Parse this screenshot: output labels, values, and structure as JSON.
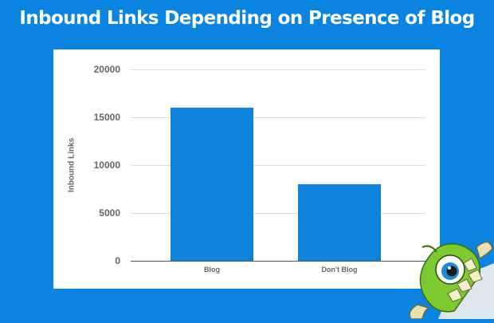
{
  "title": "Inbound Links Depending on Presence of Blog",
  "colors": {
    "background": "#0a84e0",
    "panel": "#ffffff",
    "bar": "#0f82de",
    "gridline": "#dcdcdc",
    "axis_text": "#666666"
  },
  "chart_data": {
    "type": "bar",
    "title": "Inbound Links Depending on Presence of Blog",
    "categories": [
      "Blog",
      "Don't Blog"
    ],
    "values": [
      16000,
      8000
    ],
    "xlabel": "",
    "ylabel": "Inbound Links",
    "ylim": [
      0,
      20000
    ],
    "yticks": [
      0,
      5000,
      10000,
      15000,
      20000
    ],
    "grid": true,
    "legend": null
  },
  "axis": {
    "ylabel": "Inbound Links",
    "ticks": [
      "20000",
      "15000",
      "10000",
      "5000",
      "0"
    ]
  },
  "bars": [
    {
      "label": "Blog",
      "value": 16000
    },
    {
      "label": "Don't Blog",
      "value": 8000
    }
  ],
  "mascot": {
    "icon": "green-monster-mascot-icon"
  }
}
